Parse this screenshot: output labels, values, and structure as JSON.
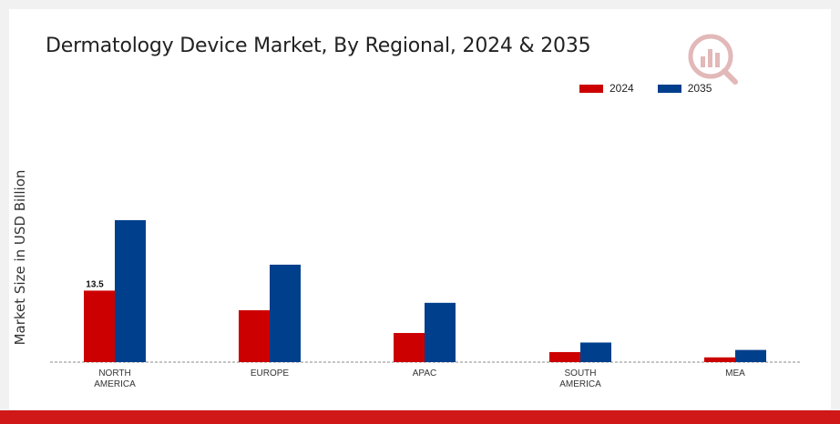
{
  "chart_data": {
    "type": "bar",
    "title": "Dermatology Device Market, By Regional, 2024 & 2035",
    "ylabel": "Market Size in USD Billion",
    "xlabel": "",
    "categories": [
      [
        "NORTH",
        "AMERICA"
      ],
      [
        "EUROPE"
      ],
      [
        "APAC"
      ],
      [
        "SOUTH",
        "AMERICA"
      ],
      [
        "MEA"
      ]
    ],
    "series": [
      {
        "name": "2024",
        "color": "#cc0000",
        "values": [
          13.5,
          9.8,
          5.5,
          1.9,
          0.9
        ]
      },
      {
        "name": "2035",
        "color": "#003f8c",
        "values": [
          26.8,
          18.4,
          11.2,
          3.7,
          2.3
        ]
      }
    ],
    "data_labels": [
      {
        "series": 0,
        "index": 0,
        "text": "13.5"
      }
    ],
    "ylim": [
      0,
      30
    ],
    "grid": false,
    "legend_position": "top-right"
  },
  "logo_icon": "market-research-logo-icon",
  "accent_color": "#d01818"
}
